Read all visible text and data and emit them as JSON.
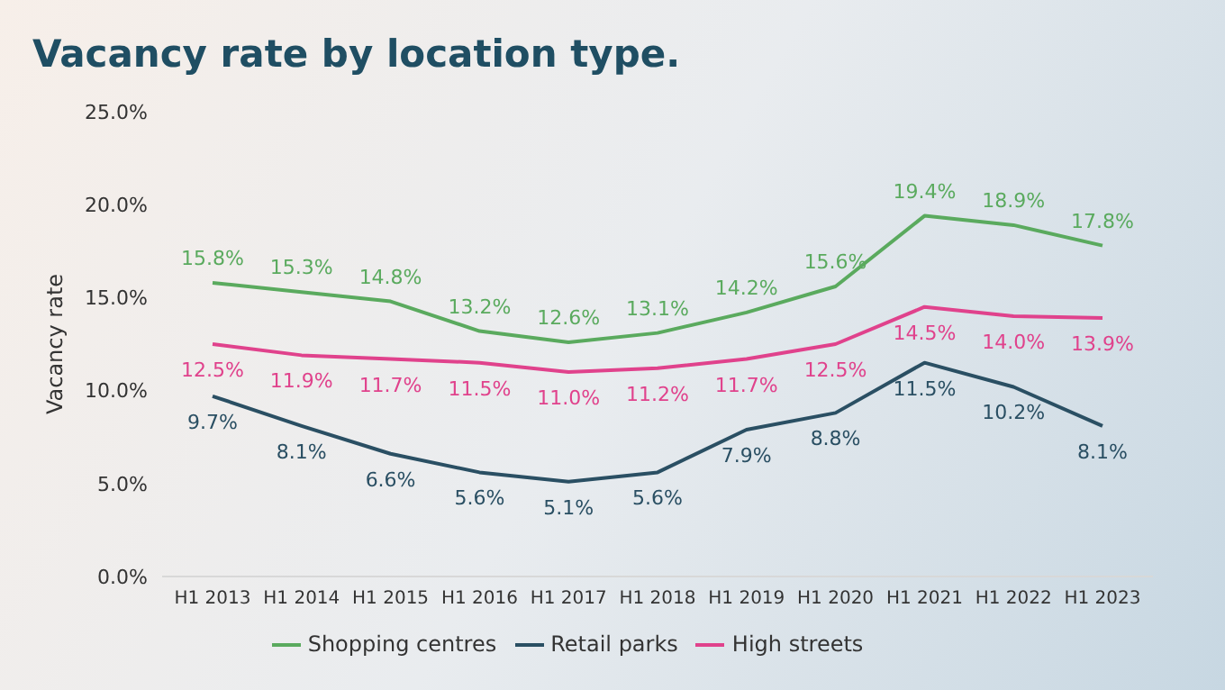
{
  "chart_data": {
    "type": "line",
    "title": "Vacancy rate by location type.",
    "ylabel": "Vacancy rate",
    "categories": [
      "H1 2013",
      "H1 2014",
      "H1 2015",
      "H1 2016",
      "H1 2017",
      "H1 2018",
      "H1 2019",
      "H1 2020",
      "H1 2021",
      "H1 2022",
      "H1 2023"
    ],
    "series": [
      {
        "name": "Shopping centres",
        "color": "#5aaa5e",
        "values": [
          15.8,
          15.3,
          14.8,
          13.2,
          12.6,
          13.1,
          14.2,
          15.6,
          19.4,
          18.9,
          17.8
        ],
        "value_labels": [
          "15.8%",
          "15.3%",
          "14.8%",
          "13.2%",
          "12.6%",
          "13.1%",
          "14.2%",
          "15.6%",
          "19.4%",
          "18.9%",
          "17.8%"
        ]
      },
      {
        "name": "Retail parks",
        "color": "#2a4f63",
        "values": [
          9.7,
          8.1,
          6.6,
          5.6,
          5.1,
          5.6,
          7.9,
          8.8,
          11.5,
          10.2,
          8.1
        ],
        "value_labels": [
          "9.7%",
          "8.1%",
          "6.6%",
          "5.6%",
          "5.1%",
          "5.6%",
          "7.9%",
          "8.8%",
          "11.5%",
          "10.2%",
          "8.1%"
        ]
      },
      {
        "name": "High streets",
        "color": "#e0428c",
        "values": [
          12.5,
          11.9,
          11.7,
          11.5,
          11.0,
          11.2,
          11.7,
          12.5,
          14.5,
          14.0,
          13.9
        ],
        "value_labels": [
          "12.5%",
          "11.9%",
          "11.7%",
          "11.5%",
          "11.0%",
          "11.2%",
          "11.7%",
          "12.5%",
          "14.5%",
          "14.0%",
          "13.9%"
        ]
      }
    ],
    "ylim": [
      0,
      25
    ],
    "yticks": [
      {
        "value": 0,
        "label": "0.0%"
      },
      {
        "value": 5,
        "label": "5.0%"
      },
      {
        "value": 10,
        "label": "10.0%"
      },
      {
        "value": 15,
        "label": "15.0%"
      },
      {
        "value": 20,
        "label": "20.0%"
      },
      {
        "value": 25,
        "label": "25.0%"
      }
    ],
    "grid": false,
    "legend": "bottom",
    "marker": "none",
    "line_style": "solid"
  }
}
